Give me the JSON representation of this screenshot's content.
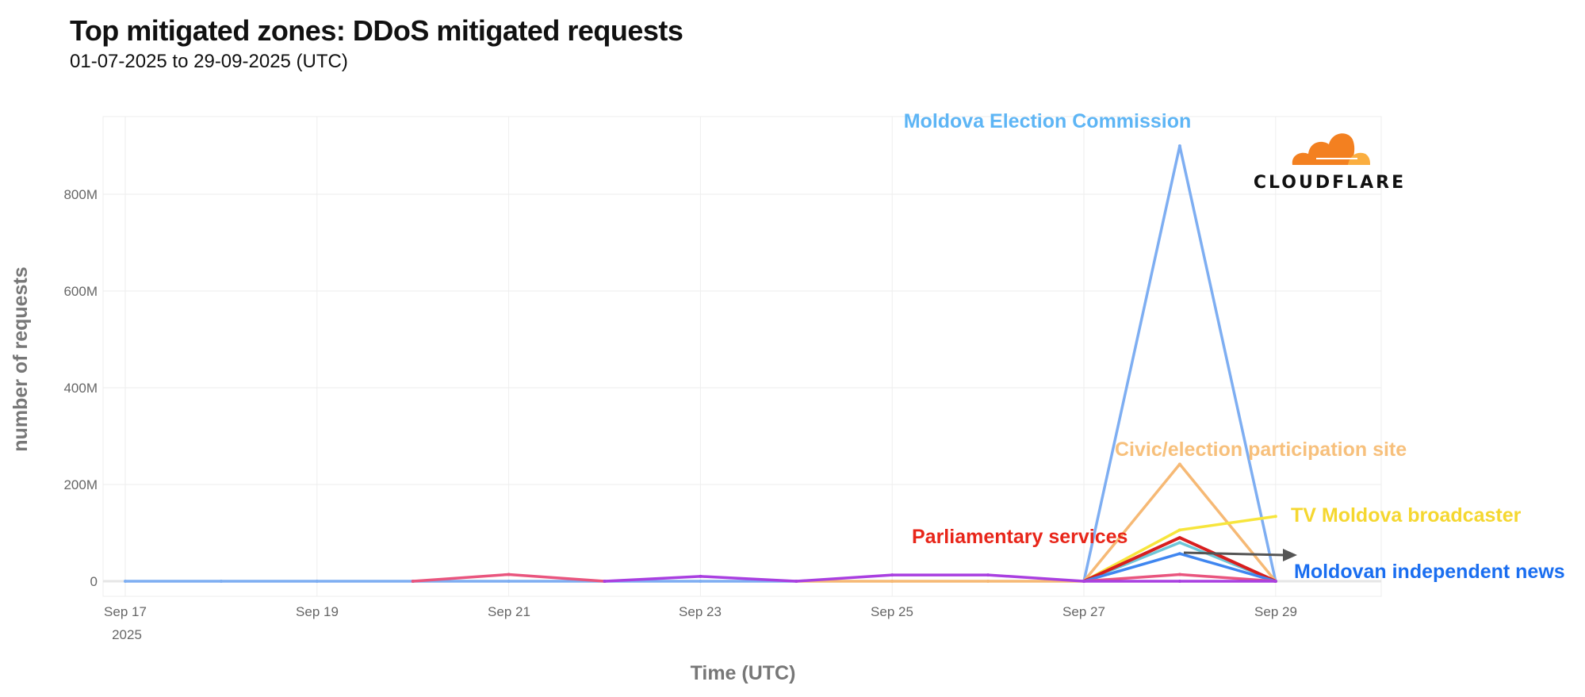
{
  "chart_data": {
    "type": "line",
    "title": "Top mitigated zones: DDoS mitigated requests",
    "subtitle": "01-07-2025 to 29-09-2025 (UTC)",
    "xlabel": "Time (UTC)",
    "ylabel": "number of requests",
    "x": [
      "2025-09-17",
      "2025-09-18",
      "2025-09-19",
      "2025-09-20",
      "2025-09-21",
      "2025-09-22",
      "2025-09-23",
      "2025-09-24",
      "2025-09-25",
      "2025-09-26",
      "2025-09-27",
      "2025-09-28",
      "2025-09-29"
    ],
    "x_tick_labels": [
      "Sep 17",
      "Sep 19",
      "Sep 21",
      "Sep 23",
      "Sep 25",
      "Sep 27",
      "Sep 29"
    ],
    "x_tick_year": "2025",
    "y_tick_labels": [
      "0",
      "200M",
      "400M",
      "600M",
      "800M"
    ],
    "ylim": [
      0,
      950000000
    ],
    "grid": true,
    "series": [
      {
        "name": "Moldova Election Commission",
        "color": "#7eaef2",
        "values": [
          0,
          0,
          0,
          0,
          0,
          0,
          0,
          0,
          null,
          null,
          0,
          900000000,
          0
        ]
      },
      {
        "name": "Civic/election participation site",
        "color": "#f6b975",
        "values": [
          null,
          null,
          null,
          null,
          null,
          null,
          null,
          0,
          0,
          0,
          0,
          242000000,
          0
        ]
      },
      {
        "name": "TV Moldova broadcaster",
        "color": "#f7e53c",
        "values": [
          null,
          null,
          null,
          null,
          null,
          null,
          null,
          null,
          null,
          null,
          0,
          106000000,
          134000000
        ]
      },
      {
        "color": "#6ec6d8",
        "values": [
          null,
          null,
          null,
          null,
          null,
          null,
          null,
          null,
          null,
          null,
          0,
          80000000,
          0
        ]
      },
      {
        "name": "Parliamentary services",
        "color": "#d81e1e",
        "values": [
          null,
          null,
          null,
          null,
          null,
          null,
          null,
          null,
          null,
          null,
          0,
          90000000,
          0
        ]
      },
      {
        "name": "Moldovan independent news",
        "color": "#3f86f0",
        "values": [
          null,
          null,
          null,
          null,
          null,
          null,
          null,
          null,
          null,
          null,
          0,
          57000000,
          0
        ]
      },
      {
        "color": "#e9557e",
        "values": [
          null,
          null,
          null,
          0,
          14000000,
          0,
          null,
          null,
          null,
          null,
          0,
          14000000,
          0
        ]
      },
      {
        "color": "#a93fe0",
        "values": [
          null,
          null,
          null,
          null,
          null,
          0,
          10000000,
          0,
          13000000,
          13000000,
          0,
          0,
          0
        ]
      }
    ],
    "annotations": [
      {
        "text": "Moldova Election Commission",
        "color": "#5db5f5"
      },
      {
        "text": "Civic/election participation site",
        "color": "#f7c07c"
      },
      {
        "text": "TV Moldova broadcaster",
        "color": "#f5d730"
      },
      {
        "text": "Parliamentary services",
        "color": "#e8261a"
      },
      {
        "text": "Moldovan independent news",
        "color": "#1a6ef0"
      }
    ]
  },
  "logo": {
    "text": "CLOUDFLARE",
    "color": "#f38020"
  }
}
